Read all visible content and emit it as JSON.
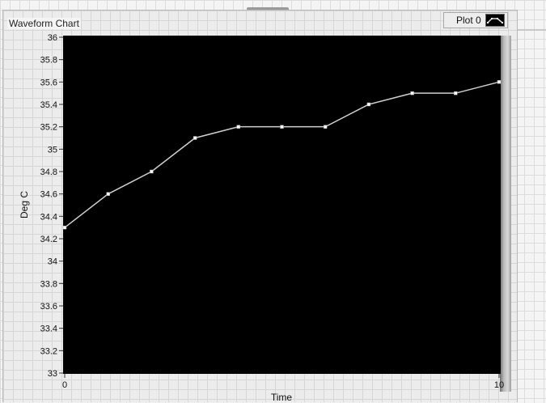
{
  "chart_title": "Waveform Chart",
  "legend": {
    "label": "Plot 0"
  },
  "chart_data": {
    "type": "line",
    "title": "",
    "xlabel": "Time",
    "ylabel": "Deg C",
    "xlim": [
      0,
      10
    ],
    "ylim": [
      33,
      36
    ],
    "yticks": [
      "36",
      "35.8",
      "35.6",
      "35.4",
      "35.2",
      "35",
      "34.8",
      "34.6",
      "34.4",
      "34.2",
      "34",
      "33.8",
      "33.6",
      "33.4",
      "33.2",
      "33"
    ],
    "xticks": [
      "0",
      "10"
    ],
    "series": [
      {
        "name": "Plot 0",
        "x": [
          0,
          1,
          2,
          3,
          4,
          5,
          6,
          7,
          8,
          9,
          10
        ],
        "values": [
          34.3,
          34.6,
          34.8,
          35.1,
          35.2,
          35.2,
          35.2,
          35.4,
          35.5,
          35.5,
          35.6
        ]
      }
    ],
    "grid": false,
    "background": "#000000",
    "line_color": "#cfcfcf"
  }
}
